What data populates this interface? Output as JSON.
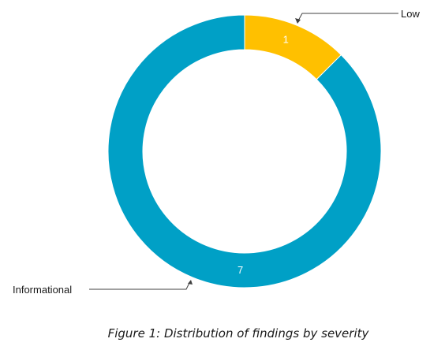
{
  "caption": "Figure 1: Distribution of findings by severity",
  "chart_data": {
    "type": "pie",
    "categories": [
      "Low",
      "Informational"
    ],
    "values": [
      1,
      7
    ],
    "colors": [
      "#ffc000",
      "#00a0c6"
    ],
    "donut": true,
    "legend": "callout labels"
  }
}
